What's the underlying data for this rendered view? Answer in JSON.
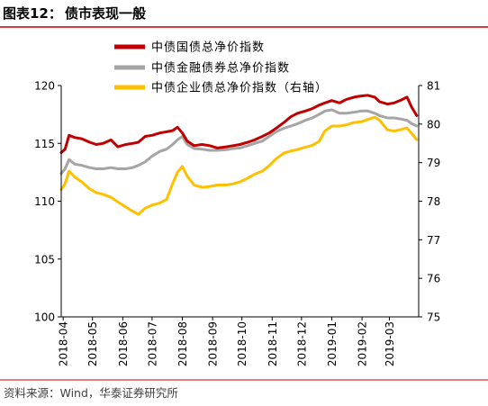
{
  "title": {
    "number": "图表12：",
    "text": "债市表现一般"
  },
  "source": "资料来源：Wind，华泰证券研究所",
  "colors": {
    "rule": "#c00000",
    "axis": "#000000"
  },
  "chart_data": {
    "type": "line",
    "legend": "top",
    "grid": false,
    "xlim": [
      "2018-03-30",
      "2019-03-31"
    ],
    "x_ticks": [
      "2018-04",
      "2018-05",
      "2018-06",
      "2018-07",
      "2018-08",
      "2018-09",
      "2018-10",
      "2018-11",
      "2018-12",
      "2019-01",
      "2019-02",
      "2019-03"
    ],
    "y_left": {
      "lim": [
        100,
        120
      ],
      "ticks": [
        100,
        105,
        110,
        115,
        120
      ]
    },
    "y_right": {
      "lim": [
        75,
        81
      ],
      "ticks": [
        75,
        76,
        77,
        78,
        79,
        80,
        81
      ]
    },
    "x": [
      "2018-03-30",
      "2018-04-03",
      "2018-04-07",
      "2018-04-13",
      "2018-04-20",
      "2018-04-28",
      "2018-05-05",
      "2018-05-12",
      "2018-05-20",
      "2018-05-27",
      "2018-06-04",
      "2018-06-11",
      "2018-06-17",
      "2018-06-24",
      "2018-07-01",
      "2018-07-09",
      "2018-07-16",
      "2018-07-22",
      "2018-07-27",
      "2018-08-01",
      "2018-08-06",
      "2018-08-13",
      "2018-08-21",
      "2018-08-29",
      "2018-09-06",
      "2018-09-15",
      "2018-09-22",
      "2018-09-29",
      "2018-10-07",
      "2018-10-14",
      "2018-10-22",
      "2018-10-29",
      "2018-11-05",
      "2018-11-13",
      "2018-11-20",
      "2018-11-27",
      "2018-12-05",
      "2018-12-12",
      "2018-12-19",
      "2018-12-25",
      "2019-01-01",
      "2019-01-09",
      "2019-01-16",
      "2019-01-24",
      "2019-01-31",
      "2019-02-07",
      "2019-02-14",
      "2019-02-19",
      "2019-02-27",
      "2019-03-06",
      "2019-03-13",
      "2019-03-19",
      "2019-03-24",
      "2019-03-29"
    ],
    "series": [
      {
        "name": "中债国债总净价指数",
        "right_axis": false,
        "color": "#c00000",
        "values": [
          114.2,
          114.5,
          115.7,
          115.5,
          115.4,
          115.1,
          114.9,
          115.0,
          115.3,
          114.7,
          114.9,
          115.0,
          115.1,
          115.6,
          115.7,
          115.9,
          116.0,
          116.1,
          116.4,
          115.9,
          115.2,
          114.8,
          114.9,
          114.8,
          114.6,
          114.7,
          114.8,
          114.9,
          115.1,
          115.3,
          115.6,
          115.9,
          116.3,
          116.8,
          117.3,
          117.6,
          117.8,
          118.0,
          118.3,
          118.5,
          118.7,
          118.5,
          118.8,
          119.0,
          119.1,
          119.15,
          119.0,
          118.6,
          118.4,
          118.5,
          118.75,
          119.0,
          118.1,
          117.4
        ]
      },
      {
        "name": "中债金融债券总净价指数",
        "right_axis": false,
        "color": "#a5a5a5",
        "values": [
          112.4,
          112.8,
          113.6,
          113.2,
          113.1,
          112.9,
          112.8,
          112.8,
          112.9,
          112.8,
          112.8,
          112.9,
          113.1,
          113.4,
          113.9,
          114.3,
          114.5,
          114.9,
          115.3,
          115.6,
          114.9,
          114.55,
          114.5,
          114.4,
          114.4,
          114.45,
          114.55,
          114.6,
          114.8,
          115.0,
          115.2,
          115.6,
          116.0,
          116.3,
          116.5,
          116.7,
          117.0,
          117.2,
          117.5,
          117.8,
          117.9,
          117.6,
          117.6,
          117.7,
          117.8,
          117.8,
          117.6,
          117.4,
          117.2,
          117.2,
          117.1,
          117.0,
          116.7,
          116.5
        ]
      },
      {
        "name": "中债企业债总净价指数（右轴）",
        "right_axis": true,
        "color": "#ffc000",
        "values": [
          78.3,
          78.45,
          78.78,
          78.62,
          78.5,
          78.32,
          78.22,
          78.18,
          78.1,
          77.98,
          77.85,
          77.74,
          77.66,
          77.82,
          77.9,
          77.95,
          78.05,
          78.45,
          78.75,
          78.9,
          78.65,
          78.42,
          78.36,
          78.38,
          78.42,
          78.42,
          78.45,
          78.5,
          78.6,
          78.7,
          78.78,
          78.92,
          79.1,
          79.25,
          79.3,
          79.34,
          79.4,
          79.45,
          79.55,
          79.82,
          79.95,
          79.95,
          79.98,
          80.04,
          80.06,
          80.12,
          80.18,
          80.1,
          79.85,
          79.82,
          79.86,
          79.9,
          79.75,
          79.6
        ]
      }
    ]
  }
}
